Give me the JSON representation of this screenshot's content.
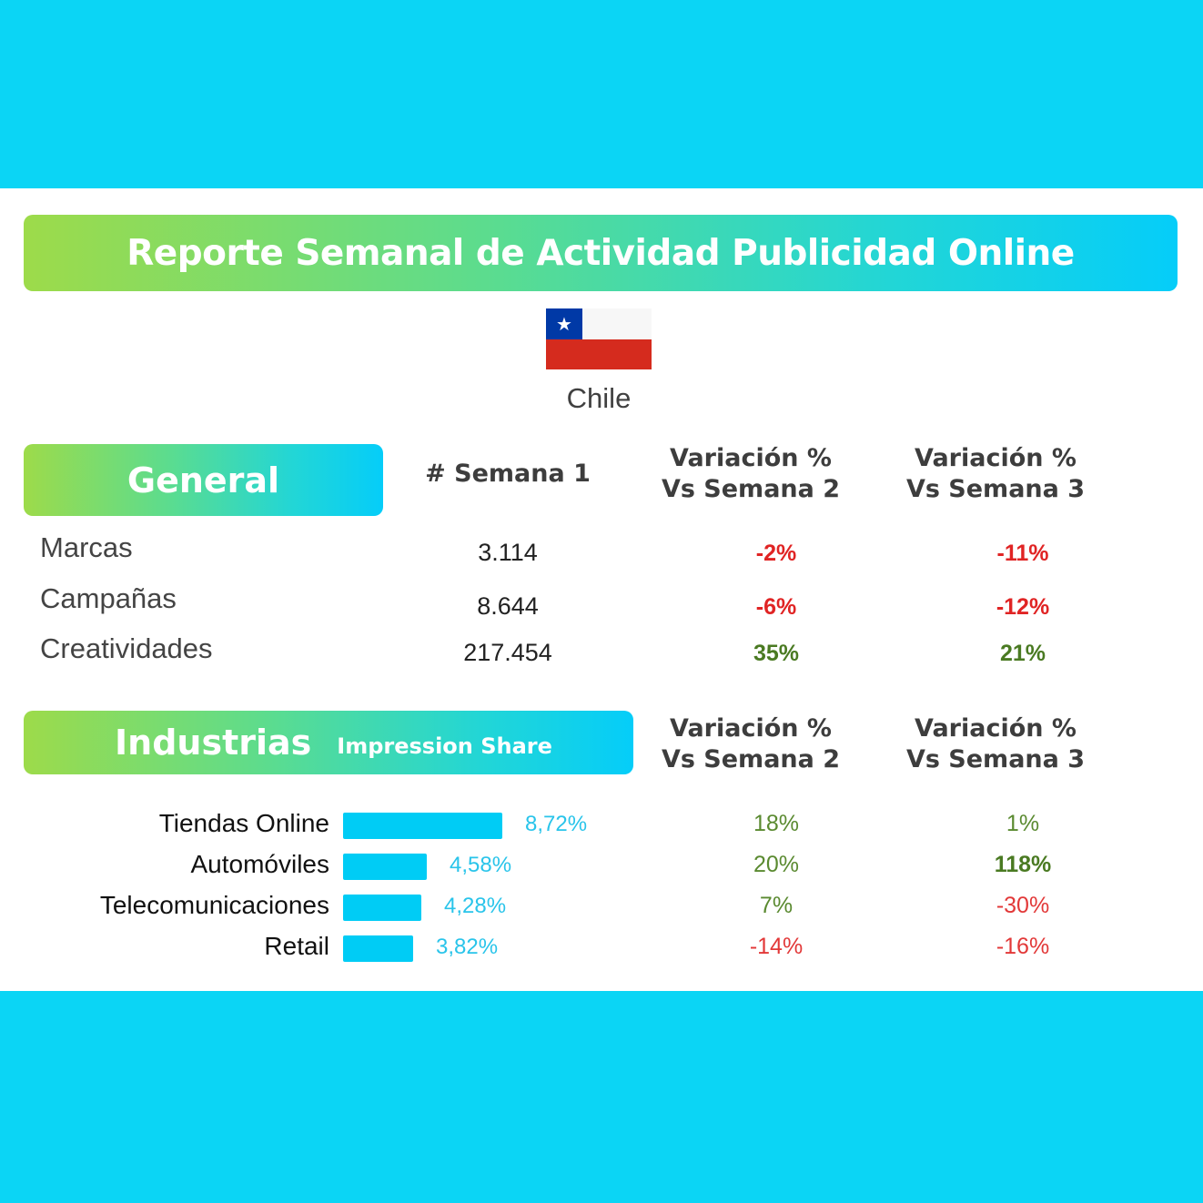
{
  "title": "Reporte Semanal de Actividad Publicidad Online",
  "country": "Chile",
  "flag_icon": "chile-flag-icon",
  "colors": {
    "band": "#0bd5f5",
    "bar": "#00ccf5",
    "negative": "#e02424",
    "positive": "#4a7a22"
  },
  "general": {
    "label": "General",
    "headers": {
      "week": "# Semana 1",
      "var2_line1": "Variación %",
      "var2_line2": "Vs Semana 2",
      "var3_line1": "Variación %",
      "var3_line2": "Vs Semana 3"
    },
    "rows": [
      {
        "label": "Marcas",
        "value": "3.114",
        "var2": "-2%",
        "var3": "-11%"
      },
      {
        "label": "Campañas",
        "value": "8.644",
        "var2": "-6%",
        "var3": "-12%"
      },
      {
        "label": "Creatividades",
        "value": "217.454",
        "var2": "35%",
        "var3": "21%"
      }
    ]
  },
  "industrias": {
    "label": "Industrias",
    "sublabel": "Impression Share",
    "headers": {
      "var2_line1": "Variación %",
      "var2_line2": "Vs Semana 2",
      "var3_line1": "Variación %",
      "var3_line2": "Vs Semana 3"
    },
    "rows": [
      {
        "name": "Tiendas Online",
        "share": 8.72,
        "share_label": "8,72%",
        "var2": "18%",
        "var3": "1%"
      },
      {
        "name": "Automóviles",
        "share": 4.58,
        "share_label": "4,58%",
        "var2": "20%",
        "var3": "118%"
      },
      {
        "name": "Telecomunicaciones",
        "share": 4.28,
        "share_label": "4,28%",
        "var2": "7%",
        "var3": "-30%"
      },
      {
        "name": "Retail",
        "share": 3.82,
        "share_label": "3,82%",
        "var2": "-14%",
        "var3": "-16%"
      }
    ]
  }
}
